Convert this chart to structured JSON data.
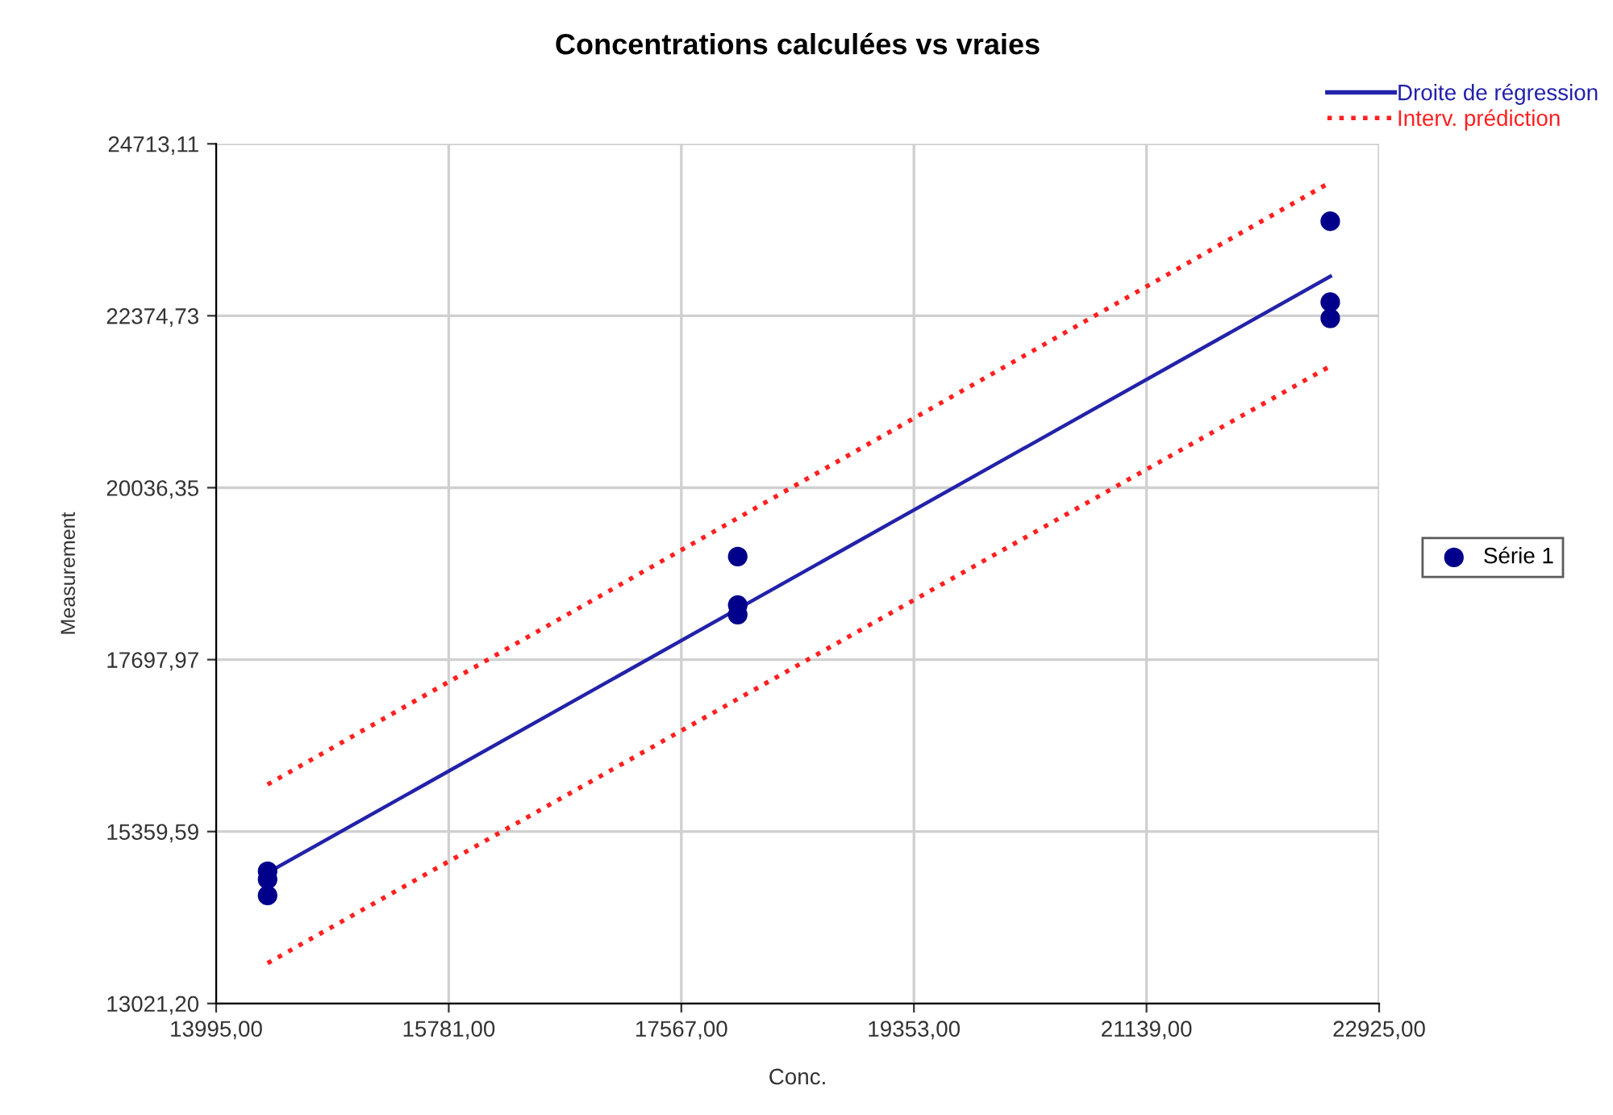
{
  "chart_data": {
    "type": "scatter",
    "title": "Concentrations calculées vs vraies",
    "xlabel": "Conc.",
    "ylabel": "Measurement",
    "xlim": [
      13995,
      22925
    ],
    "ylim": [
      13021.2,
      24713.11
    ],
    "xticks": [
      {
        "value": 13995,
        "label": "13995,00"
      },
      {
        "value": 15781,
        "label": "15781,00"
      },
      {
        "value": 17567,
        "label": "17567,00"
      },
      {
        "value": 19353,
        "label": "19353,00"
      },
      {
        "value": 21139,
        "label": "21139,00"
      },
      {
        "value": 22925,
        "label": "22925,00"
      }
    ],
    "yticks": [
      {
        "value": 13021.2,
        "label": "13021,20"
      },
      {
        "value": 15359.59,
        "label": "15359,59"
      },
      {
        "value": 17697.97,
        "label": "17697,97"
      },
      {
        "value": 20036.35,
        "label": "20036,35"
      },
      {
        "value": 22374.73,
        "label": "22374,73"
      },
      {
        "value": 24713.11,
        "label": "24713,11"
      }
    ],
    "grid": true,
    "legend": "right",
    "series": [
      {
        "name": "Série 1",
        "color": "#00008b",
        "marker": "circle",
        "x": [
          14390,
          14390,
          14390,
          18000,
          18000,
          18000,
          22550,
          22550,
          22550
        ],
        "values": [
          14820,
          14710,
          14490,
          19100,
          18440,
          18310,
          23660,
          22560,
          22340
        ]
      },
      {
        "name": "Droite de régression",
        "type": "line",
        "color": "#2222aa",
        "line_style": "solid",
        "x": [
          14390,
          22550
        ],
        "values": [
          14800,
          22910
        ]
      },
      {
        "name": "Interv. prédiction",
        "type": "line",
        "color": "#ff2020",
        "line_style": "dotted",
        "x": [
          14390,
          22550
        ],
        "values": [
          16000,
          24190
        ]
      },
      {
        "type": "line",
        "color": "#ff2020",
        "line_style": "dotted",
        "x": [
          14390,
          22550
        ],
        "values": [
          13570,
          21690
        ]
      }
    ]
  }
}
